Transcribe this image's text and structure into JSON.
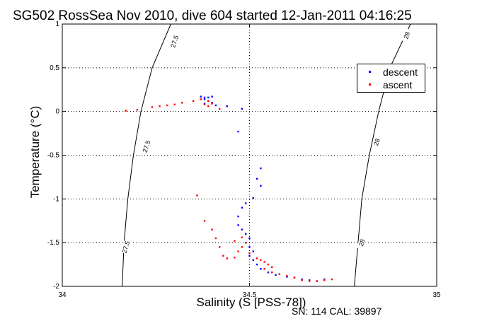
{
  "title": "SG502 RossSea Nov 2010, dive 604 started 12-Jan-2011 04:16:25",
  "serial": "SN: 114  CAL: 39897",
  "chart_data": {
    "type": "scatter",
    "title": "SG502 RossSea Nov 2010, dive 604 started 12-Jan-2011 04:16:25",
    "xlabel": "Salinity (S [PSS-78])",
    "ylabel": "Temperature (°C)",
    "xlim": [
      34,
      35
    ],
    "ylim": [
      -2,
      1
    ],
    "xticks": [
      34,
      34.5,
      35
    ],
    "xtick_labels": [
      "34",
      "34.5",
      "35"
    ],
    "yticks": [
      -2,
      -1.5,
      -1,
      -0.5,
      0,
      0.5,
      1
    ],
    "ytick_labels": [
      "-2",
      "-1.5",
      "-1",
      "-0.5",
      "0",
      "0.5",
      "1"
    ],
    "grid": true,
    "legend_position": "top-right",
    "colors": {
      "descent": "#0000ff",
      "ascent": "#ff0000",
      "contour": "#000000"
    },
    "contours": [
      {
        "label": "27.5",
        "points": [
          [
            34.29,
            1.0
          ],
          [
            34.24,
            0.5
          ],
          [
            34.21,
            0.0
          ],
          [
            34.19,
            -0.5
          ],
          [
            34.175,
            -1.0
          ],
          [
            34.165,
            -1.5
          ],
          [
            34.16,
            -2.0
          ]
        ],
        "label_positions": [
          [
            34.3,
            0.8
          ],
          [
            34.225,
            -0.4
          ],
          [
            34.17,
            -1.55
          ]
        ]
      },
      {
        "label": "28",
        "points": [
          [
            34.93,
            1.0
          ],
          [
            34.875,
            0.5
          ],
          [
            34.845,
            0.0
          ],
          [
            34.82,
            -0.5
          ],
          [
            34.8,
            -1.0
          ],
          [
            34.79,
            -1.5
          ],
          [
            34.78,
            -2.0
          ]
        ],
        "label_positions": [
          [
            34.92,
            0.87
          ],
          [
            34.84,
            -0.35
          ],
          [
            34.8,
            -1.5
          ]
        ]
      }
    ],
    "series": [
      {
        "name": "descent",
        "points": [
          [
            34.37,
            0.17
          ],
          [
            34.38,
            0.16
          ],
          [
            34.39,
            0.16
          ],
          [
            34.4,
            0.17
          ],
          [
            34.38,
            0.14
          ],
          [
            34.39,
            0.12
          ],
          [
            34.4,
            0.1
          ],
          [
            34.41,
            0.07
          ],
          [
            34.38,
            0.09
          ],
          [
            34.44,
            0.06
          ],
          [
            34.48,
            0.03
          ],
          [
            34.47,
            -0.23
          ],
          [
            34.53,
            -0.65
          ],
          [
            34.52,
            -0.77
          ],
          [
            34.53,
            -0.85
          ],
          [
            34.51,
            -0.99
          ],
          [
            34.49,
            -1.05
          ],
          [
            34.48,
            -1.1
          ],
          [
            34.47,
            -1.2
          ],
          [
            34.47,
            -1.3
          ],
          [
            34.48,
            -1.35
          ],
          [
            34.49,
            -1.4
          ],
          [
            34.5,
            -1.45
          ],
          [
            34.49,
            -1.5
          ],
          [
            34.5,
            -1.55
          ],
          [
            34.51,
            -1.6
          ],
          [
            34.5,
            -1.65
          ],
          [
            34.51,
            -1.7
          ],
          [
            34.52,
            -1.75
          ],
          [
            34.53,
            -1.8
          ],
          [
            34.55,
            -1.84
          ],
          [
            34.57,
            -1.87
          ],
          [
            34.6,
            -1.89
          ],
          [
            34.62,
            -1.9
          ],
          [
            34.64,
            -1.92
          ],
          [
            34.66,
            -1.93
          ],
          [
            34.68,
            -1.94
          ],
          [
            34.7,
            -1.92
          ]
        ]
      },
      {
        "name": "ascent",
        "points": [
          [
            34.17,
            0.01
          ],
          [
            34.2,
            0.02
          ],
          [
            34.24,
            0.05
          ],
          [
            34.26,
            0.06
          ],
          [
            34.28,
            0.07
          ],
          [
            34.3,
            0.08
          ],
          [
            34.32,
            0.1
          ],
          [
            34.35,
            0.12
          ],
          [
            34.37,
            0.14
          ],
          [
            34.39,
            0.12
          ],
          [
            34.4,
            0.09
          ],
          [
            34.38,
            0.08
          ],
          [
            34.39,
            0.06
          ],
          [
            34.42,
            0.03
          ],
          [
            34.36,
            -0.96
          ],
          [
            34.38,
            -1.25
          ],
          [
            34.4,
            -1.35
          ],
          [
            34.41,
            -1.45
          ],
          [
            34.42,
            -1.55
          ],
          [
            34.43,
            -1.65
          ],
          [
            34.44,
            -1.68
          ],
          [
            34.46,
            -1.67
          ],
          [
            34.47,
            -1.6
          ],
          [
            34.48,
            -1.55
          ],
          [
            34.46,
            -1.48
          ],
          [
            34.48,
            -1.44
          ],
          [
            34.49,
            -1.5
          ],
          [
            34.5,
            -1.62
          ],
          [
            34.52,
            -1.68
          ],
          [
            34.53,
            -1.7
          ],
          [
            34.54,
            -1.72
          ],
          [
            34.55,
            -1.75
          ],
          [
            34.56,
            -1.78
          ],
          [
            34.54,
            -1.8
          ],
          [
            34.56,
            -1.84
          ],
          [
            34.58,
            -1.86
          ],
          [
            34.6,
            -1.88
          ],
          [
            34.62,
            -1.9
          ],
          [
            34.64,
            -1.93
          ],
          [
            34.66,
            -1.94
          ],
          [
            34.68,
            -1.94
          ],
          [
            34.7,
            -1.93
          ],
          [
            34.72,
            -1.92
          ]
        ]
      }
    ]
  }
}
